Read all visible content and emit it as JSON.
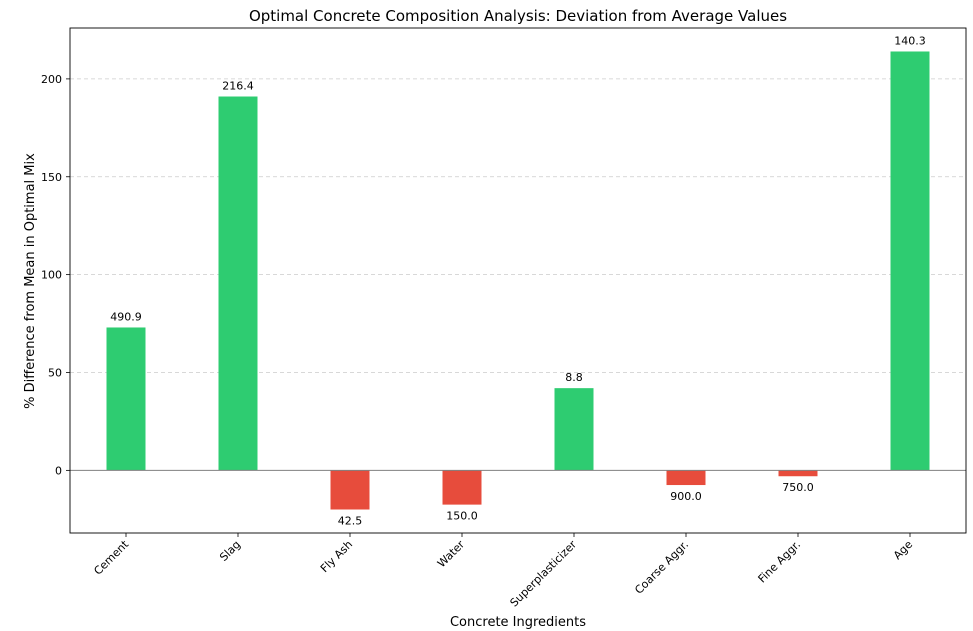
{
  "chart_data": {
    "type": "bar",
    "title": "Optimal Concrete Composition Analysis: Deviation from Average Values",
    "xlabel": "Concrete Ingredients",
    "ylabel": "% Difference from Mean in Optimal Mix",
    "categories": [
      "Cement",
      "Slag",
      "Fly Ash",
      "Water",
      "Superplasticizer",
      "Coarse Aggr.",
      "Fine Aggr.",
      "Age"
    ],
    "values": [
      73.0,
      191.0,
      -20.0,
      -17.5,
      42.0,
      -7.5,
      -3.0,
      214.0
    ],
    "labels": [
      "490.9",
      "216.4",
      "42.5",
      "150.0",
      "8.8",
      "900.0",
      "750.0",
      "140.3"
    ],
    "yticks": [
      0,
      50,
      100,
      150,
      200
    ],
    "ylim": [
      -32,
      226
    ],
    "grid": true,
    "colors": {
      "positive": "#2ecc71",
      "negative": "#e74c3c",
      "zero_line": "#808080",
      "grid": "#cccccc"
    }
  }
}
